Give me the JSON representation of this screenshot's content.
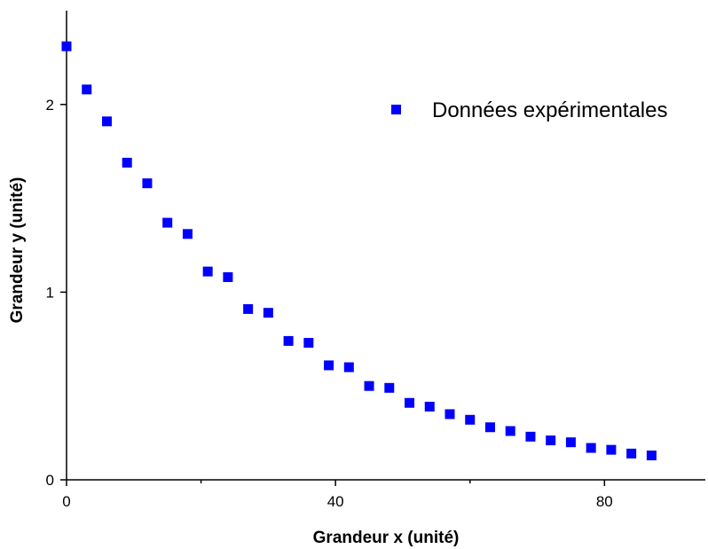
{
  "chart_data": {
    "type": "scatter",
    "xlabel": "Grandeur x (unité)",
    "ylabel": "Grandeur y (unité)",
    "xlim": [
      0,
      95
    ],
    "ylim": [
      0,
      2.5
    ],
    "x_ticks": [
      0,
      40,
      80
    ],
    "x_minor_ticks": [
      20,
      60
    ],
    "y_ticks": [
      0,
      1,
      2
    ],
    "grid": false,
    "legend_position": "top-right",
    "marker": "square",
    "color": "#0000ff",
    "series": [
      {
        "name": "Données expérimentales",
        "x": [
          0,
          3,
          6,
          9,
          12,
          15,
          18,
          21,
          24,
          27,
          30,
          33,
          36,
          39,
          42,
          45,
          48,
          51,
          54,
          57,
          60,
          63,
          66,
          69,
          72,
          75,
          78,
          81,
          84,
          87
        ],
        "y": [
          2.31,
          2.08,
          1.91,
          1.69,
          1.58,
          1.37,
          1.31,
          1.11,
          1.08,
          0.91,
          0.89,
          0.74,
          0.73,
          0.61,
          0.6,
          0.5,
          0.49,
          0.41,
          0.39,
          0.35,
          0.32,
          0.28,
          0.26,
          0.23,
          0.21,
          0.2,
          0.17,
          0.16,
          0.14,
          0.13
        ]
      }
    ]
  }
}
